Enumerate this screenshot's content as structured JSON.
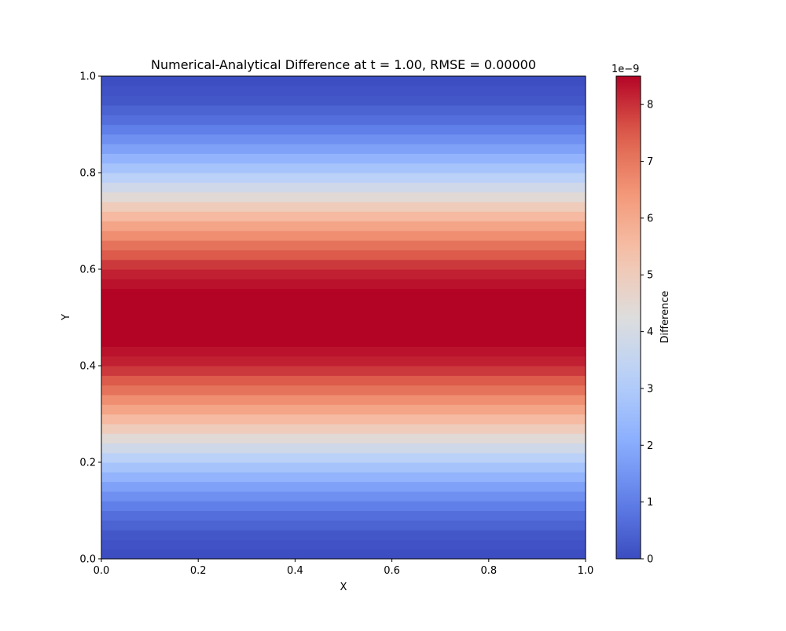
{
  "chart_data": {
    "type": "heatmap",
    "title": "Numerical-Analytical Difference at t = 1.00, RMSE = 0.00000",
    "xlabel": "X",
    "ylabel": "Y",
    "xlim": [
      0.0,
      1.0
    ],
    "ylim": [
      0.0,
      1.0
    ],
    "xticks": [
      "0.0",
      "0.2",
      "0.4",
      "0.6",
      "0.8",
      "1.0"
    ],
    "yticks": [
      "0.0",
      "0.2",
      "0.4",
      "0.6",
      "0.8",
      "1.0"
    ],
    "colormap": "coolwarm",
    "colorbar": {
      "label": "Difference",
      "offset_text": "1e−9",
      "range": [
        0,
        8.5
      ],
      "ticks": [
        "0",
        "1",
        "2",
        "3",
        "4",
        "5",
        "6",
        "7",
        "8"
      ]
    },
    "grid": false,
    "field": {
      "description_of_values": "Difference varies only with Y, constant along X",
      "y": [
        0.0,
        0.05,
        0.1,
        0.15,
        0.2,
        0.25,
        0.3,
        0.35,
        0.4,
        0.45,
        0.5,
        0.55,
        0.6,
        0.65,
        0.7,
        0.75,
        0.8,
        0.85,
        0.9,
        0.95,
        1.0
      ],
      "values": [
        0.0,
        0.21,
        0.81,
        1.77,
        3.0,
        4.41,
        5.87,
        7.09,
        8.09,
        8.5,
        8.5,
        8.5,
        8.09,
        7.09,
        5.87,
        4.41,
        3.0,
        1.77,
        0.81,
        0.21,
        0.0
      ]
    }
  }
}
